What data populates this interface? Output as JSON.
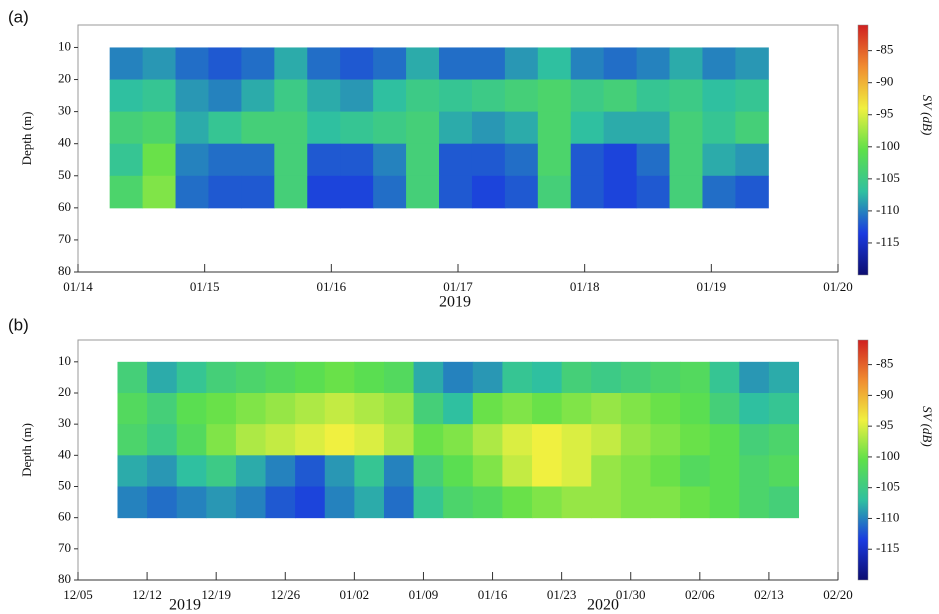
{
  "chart_data": [
    {
      "type": "heatmap",
      "panel_label": "(a)",
      "ylabel": "Depth (m)",
      "xlabel": "2019",
      "colorbar_label": "SV (dB)",
      "xlim": [
        14,
        20
      ],
      "xticks": [
        {
          "value": 14,
          "label": "01/14"
        },
        {
          "value": 15,
          "label": "01/15"
        },
        {
          "value": 16,
          "label": "01/16"
        },
        {
          "value": 17,
          "label": "01/17"
        },
        {
          "value": 18,
          "label": "01/18"
        },
        {
          "value": 19,
          "label": "01/19"
        },
        {
          "value": 20,
          "label": "01/20"
        }
      ],
      "ylim": [
        80,
        3
      ],
      "yticks": [
        10,
        20,
        30,
        40,
        50,
        60,
        70,
        80
      ],
      "y_inverted": true,
      "zlim": [
        -120,
        -81
      ],
      "zticks": [
        -115,
        -110,
        -105,
        -100,
        -95,
        -90,
        -85
      ],
      "colormap": [
        "#0d0d70",
        "#1a3ae0",
        "#2fc0a0",
        "#5ee04a",
        "#f0f040",
        "#f08c30",
        "#d02020"
      ],
      "x": [
        14.38,
        14.64,
        14.9,
        15.16,
        15.42,
        15.68,
        15.94,
        16.2,
        16.46,
        16.72,
        16.98,
        17.24,
        17.5,
        17.76,
        18.02,
        18.28,
        18.54,
        18.8,
        19.06,
        19.32
      ],
      "y": [
        15,
        25,
        35,
        45,
        55
      ],
      "z": [
        [
          -110,
          -109,
          -111,
          -112,
          -111,
          -108,
          -111,
          -112,
          -111,
          -108,
          -111,
          -111,
          -109,
          -107,
          -110,
          -111,
          -110,
          -108,
          -110,
          -109
        ],
        [
          -107,
          -106,
          -109,
          -110,
          -108,
          -105,
          -108,
          -109,
          -107,
          -105,
          -106,
          -105,
          -104,
          -103,
          -105,
          -104,
          -106,
          -105,
          -107,
          -106
        ],
        [
          -104,
          -103,
          -108,
          -106,
          -104,
          -104,
          -107,
          -106,
          -105,
          -104,
          -108,
          -109,
          -108,
          -103,
          -107,
          -108,
          -108,
          -104,
          -106,
          -104
        ],
        [
          -106,
          -100,
          -110,
          -111,
          -111,
          -104,
          -112,
          -112,
          -110,
          -104,
          -112,
          -112,
          -111,
          -103,
          -112,
          -113,
          -111,
          -104,
          -108,
          -109
        ],
        [
          -103,
          -99,
          -111,
          -112,
          -112,
          -104,
          -113,
          -113,
          -111,
          -104,
          -112,
          -113,
          -112,
          -104,
          -112,
          -113,
          -112,
          -104,
          -111,
          -112
        ]
      ]
    },
    {
      "type": "heatmap",
      "panel_label": "(b)",
      "ylabel": "Depth (m)",
      "annotations": [
        "2019",
        "2020"
      ],
      "colorbar_label": "SV (dB)",
      "xlim": [
        339,
        416
      ],
      "xticks": [
        {
          "value": 339,
          "label": "12/05"
        },
        {
          "value": 346,
          "label": "12/12"
        },
        {
          "value": 353,
          "label": "12/19"
        },
        {
          "value": 360,
          "label": "12/26"
        },
        {
          "value": 367,
          "label": "01/02"
        },
        {
          "value": 374,
          "label": "01/09"
        },
        {
          "value": 381,
          "label": "01/16"
        },
        {
          "value": 388,
          "label": "01/23"
        },
        {
          "value": 395,
          "label": "01/30"
        },
        {
          "value": 402,
          "label": "02/06"
        },
        {
          "value": 409,
          "label": "02/13"
        },
        {
          "value": 416,
          "label": "02/20"
        }
      ],
      "ylim": [
        80,
        3
      ],
      "yticks": [
        10,
        20,
        30,
        40,
        50,
        60,
        70,
        80
      ],
      "y_inverted": true,
      "zlim": [
        -120,
        -81
      ],
      "zticks": [
        -115,
        -110,
        -105,
        -100,
        -95,
        -90,
        -85
      ],
      "colormap": [
        "#0d0d70",
        "#1a3ae0",
        "#2fc0a0",
        "#5ee04a",
        "#f0f040",
        "#f08c30",
        "#d02020"
      ],
      "x": [
        344.5,
        347.5,
        350.5,
        353.5,
        356.5,
        359.5,
        362.5,
        365.5,
        368.5,
        371.5,
        374.5,
        377.5,
        380.5,
        383.5,
        386.5,
        389.5,
        392.5,
        395.5,
        398.5,
        401.5,
        404.5,
        407.5,
        410.5
      ],
      "y": [
        15,
        25,
        35,
        45,
        55
      ],
      "z": [
        [
          -104,
          -108,
          -106,
          -104,
          -103,
          -102,
          -101,
          -100,
          -101,
          -102,
          -108,
          -110,
          -109,
          -106,
          -107,
          -104,
          -105,
          -104,
          -103,
          -102,
          -106,
          -109,
          -108
        ],
        [
          -102,
          -104,
          -101,
          -100,
          -99,
          -98,
          -97,
          -96,
          -97,
          -98,
          -104,
          -107,
          -100,
          -99,
          -100,
          -99,
          -98,
          -99,
          -100,
          -101,
          -104,
          -107,
          -106
        ],
        [
          -103,
          -105,
          -102,
          -99,
          -97,
          -96,
          -95,
          -94,
          -95,
          -97,
          -100,
          -99,
          -97,
          -95,
          -94,
          -95,
          -96,
          -98,
          -99,
          -100,
          -101,
          -104,
          -103
        ],
        [
          -108,
          -109,
          -107,
          -105,
          -108,
          -110,
          -112,
          -109,
          -106,
          -110,
          -104,
          -101,
          -99,
          -96,
          -94,
          -95,
          -98,
          -99,
          -100,
          -102,
          -101,
          -103,
          -102
        ],
        [
          -110,
          -111,
          -110,
          -109,
          -110,
          -112,
          -113,
          -110,
          -108,
          -111,
          -106,
          -103,
          -102,
          -100,
          -99,
          -98,
          -98,
          -99,
          -99,
          -100,
          -101,
          -103,
          -104
        ]
      ]
    }
  ]
}
